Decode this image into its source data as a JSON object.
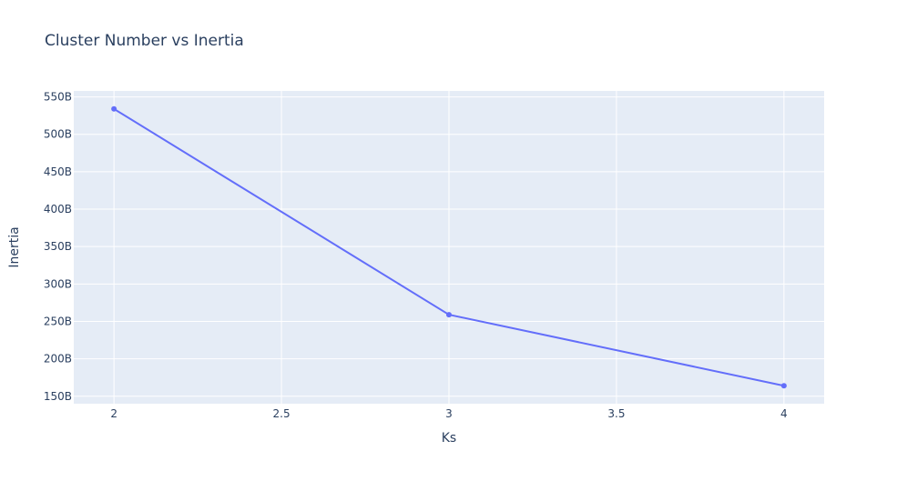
{
  "chart_data": {
    "type": "line",
    "title": "Cluster Number vs Inertia",
    "xlabel": "Ks",
    "ylabel": "Inertia",
    "xlim": [
      1.88,
      4.12
    ],
    "ylim": [
      140,
      558
    ],
    "x_ticks": [
      {
        "value": 2,
        "label": "2"
      },
      {
        "value": 2.5,
        "label": "2.5"
      },
      {
        "value": 3,
        "label": "3"
      },
      {
        "value": 3.5,
        "label": "3.5"
      },
      {
        "value": 4,
        "label": "4"
      }
    ],
    "y_ticks": [
      {
        "value": 150,
        "label": "150B"
      },
      {
        "value": 200,
        "label": "200B"
      },
      {
        "value": 250,
        "label": "250B"
      },
      {
        "value": 300,
        "label": "300B"
      },
      {
        "value": 350,
        "label": "350B"
      },
      {
        "value": 400,
        "label": "400B"
      },
      {
        "value": 450,
        "label": "450B"
      },
      {
        "value": 500,
        "label": "500B"
      },
      {
        "value": 550,
        "label": "550B"
      }
    ],
    "y_unit_note": "B",
    "series": [
      {
        "x": [
          2,
          3,
          4
        ],
        "y": [
          534,
          259,
          164
        ],
        "mode": "lines+markers"
      }
    ],
    "grid": true,
    "colors": {
      "plot_background": "#e5ecf6",
      "grid": "#ffffff",
      "line": "#636efa",
      "text": "#2a3f5f"
    }
  }
}
